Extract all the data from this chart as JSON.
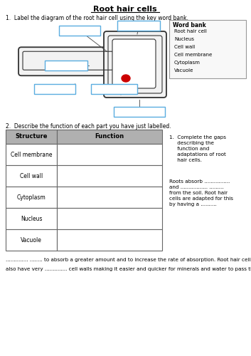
{
  "title": "Root hair cells",
  "question1": "1.  Label the diagram of the root hair cell using the key word bank.",
  "question2": "2.  Describe the function of each part you have just labelled.",
  "word_bank_title": "Word bank",
  "word_bank_items": [
    "Root hair cell",
    "Nucleus",
    "Cell wall",
    "Cell membrane",
    "Cytoplasm",
    "Vacuole"
  ],
  "table_headers": [
    "Structure",
    "Function"
  ],
  "table_rows": [
    "Cell membrane",
    "Cell wall",
    "Cytoplasm",
    "Nucleus",
    "Vacuole"
  ],
  "gap_fill_title": "1.  Complete the gaps\n     describing the\n     function and\n     adaptations of root\n     hair cells.",
  "gap_fill_text1": "Roots absorb ................\nand ................. .........\nfrom the soil. Root hair\ncells are adapted for this\nby having a ..........",
  "gap_fill_line1": ".............. ........ to absorb a greater amount and to increase the rate of absorption. Root hair cells",
  "gap_fill_line2": "also have very .............. cell walls making it easier and quicker for minerals and water to pass through.",
  "bg_color": "#ffffff",
  "text_color": "#000000",
  "table_header_bg": "#b0b0b0",
  "table_border_color": "#666666",
  "word_bank_bg": "#f8f8f8",
  "word_bank_border": "#999999",
  "label_box_color": "#5aade0",
  "cell_outline_color": "#333333",
  "nucleus_color": "#cc0000",
  "cell_fill": "#f2f2f2"
}
